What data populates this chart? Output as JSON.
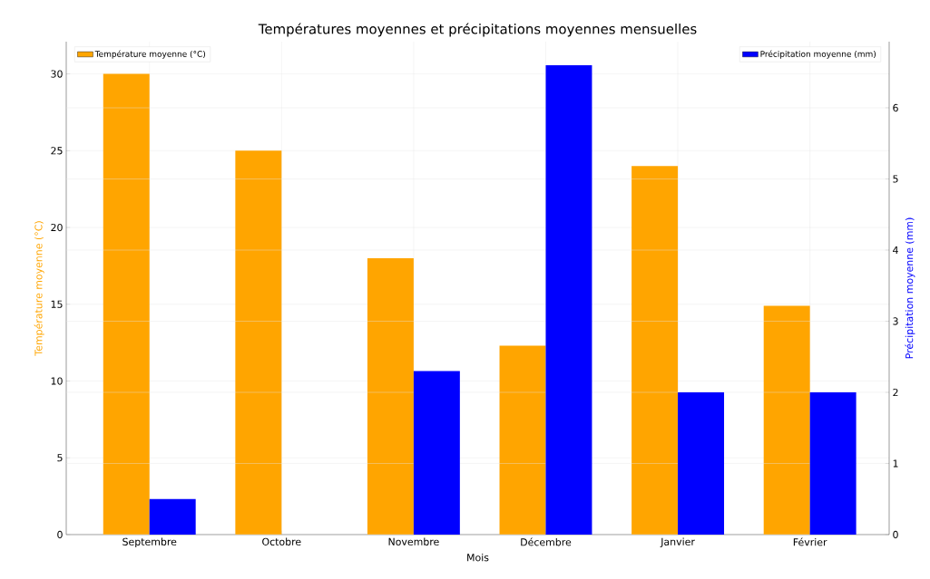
{
  "chart_data": {
    "type": "bar",
    "title": "Températures moyennes et précipitations moyennes mensuelles",
    "xlabel": "Mois",
    "ylabel": "Température moyenne (°C)",
    "y2label": "Précipitation moyenne (mm)",
    "categories": [
      "Septembre",
      "Octobre",
      "Novembre",
      "Décembre",
      "Janvier",
      "Février"
    ],
    "series": [
      {
        "name": "Température moyenne (°C)",
        "color": "#ffa500",
        "values": [
          30,
          25,
          18,
          12.3,
          24,
          14.9
        ]
      },
      {
        "name": "Précipitation moyenne (mm)",
        "color": "#0000ff",
        "axis": "y2",
        "values": [
          0.5,
          0,
          2.3,
          6.6,
          2.0,
          2.0
        ]
      }
    ],
    "ylim": [
      0,
      32.1
    ],
    "yticks": [
      0,
      5,
      10,
      15,
      20,
      25,
      30
    ],
    "y2lim": [
      0,
      6.93
    ],
    "y2ticks": [
      0,
      1,
      2,
      3,
      4,
      5,
      6
    ],
    "grid": true,
    "legend": "top"
  }
}
